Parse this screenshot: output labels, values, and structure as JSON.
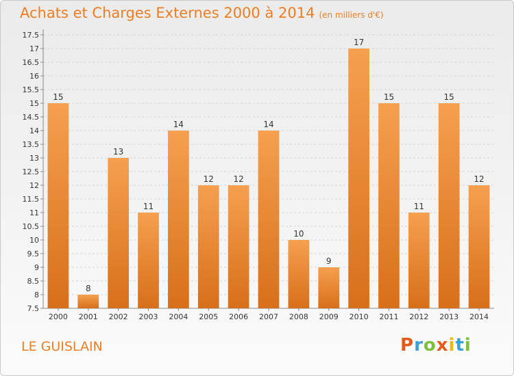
{
  "title": "Achats et Charges Externes 2000 à 2014",
  "subtitle": "(en milliers d'€)",
  "commune": "LE GUISLAIN",
  "logo": {
    "letters": [
      "P",
      "r",
      "o",
      "x",
      "i",
      "t",
      "i"
    ],
    "colors": [
      "#e25a1c",
      "#3aa0d8",
      "#7cbf3a",
      "#e25a1c",
      "#f2b705",
      "#3aa0d8",
      "#7cbf3a"
    ]
  },
  "colors": {
    "accent": "#ee7d22",
    "bar_top": "#f5a04f",
    "bar_bottom": "#d86f1a"
  },
  "chart_data": {
    "type": "bar",
    "title": "Achats et Charges Externes 2000 à 2014",
    "subtitle": "(en milliers d'€)",
    "xlabel": "",
    "ylabel": "",
    "ylim": [
      7.5,
      17.5
    ],
    "yticks": [
      "7.5",
      "8",
      "8.5",
      "9",
      "9.5",
      "10",
      "10.5",
      "11",
      "11.5",
      "12",
      "12.5",
      "13",
      "13.5",
      "14",
      "14.5",
      "15",
      "15.5",
      "16",
      "16.5",
      "17",
      "17.5"
    ],
    "grid": true,
    "categories": [
      "2000",
      "2001",
      "2002",
      "2003",
      "2004",
      "2005",
      "2006",
      "2007",
      "2008",
      "2009",
      "2010",
      "2011",
      "2012",
      "2013",
      "2014"
    ],
    "values": [
      15,
      8,
      13,
      11,
      14,
      12,
      12,
      14,
      10,
      9,
      17,
      15,
      11,
      15,
      12
    ]
  }
}
